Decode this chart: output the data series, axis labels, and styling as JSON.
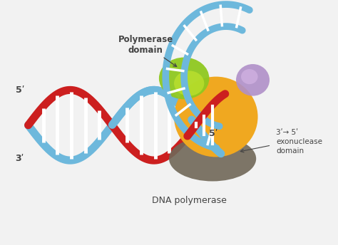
{
  "bg_color": "#f0f0f0",
  "labels": {
    "five_prime_top": "5ʹ",
    "five_prime_left": "5ʹ",
    "three_prime_left": "3ʹ",
    "polymerase_domain": "Polymerase\ndomain",
    "exonuclease_domain": "3ʹ→ 5ʹ\nexonuclease\ndomain",
    "dna_polymerase": "DNA polymerase"
  },
  "colors": {
    "blue_dna": "#6db8dc",
    "red_dna": "#cc1f1f",
    "orange_body": "#f0a820",
    "green_domain": "#8fc820",
    "purple_domain": "#b090c8",
    "dark_domain": "#706858",
    "bg": "#f2f2f2",
    "white": "#ffffff",
    "label_color": "#444444"
  }
}
